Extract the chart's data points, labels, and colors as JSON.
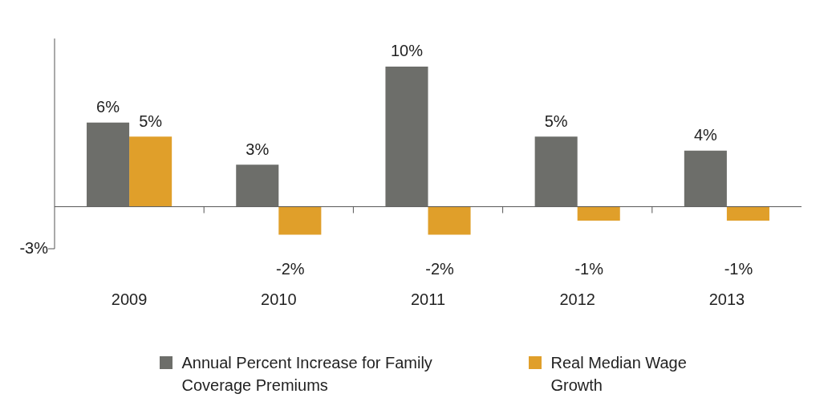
{
  "chart_data": {
    "type": "bar",
    "categories": [
      "2009",
      "2010",
      "2011",
      "2012",
      "2013"
    ],
    "series": [
      {
        "name": "Annual Percent Increase for Family Coverage Premiums",
        "color": "#6d6e6a",
        "values": [
          6,
          3,
          10,
          5,
          4
        ],
        "value_labels": [
          "6%",
          "3%",
          "10%",
          "5%",
          "4%"
        ]
      },
      {
        "name": "Real Median Wage Growth",
        "color": "#e09f2a",
        "values": [
          5,
          -2,
          -2,
          -1,
          -1
        ],
        "value_labels": [
          "5%",
          "-2%",
          "-2%",
          "-1%",
          "-1%"
        ]
      }
    ],
    "ylim": [
      -3,
      12
    ],
    "annotations": [
      "-3%"
    ],
    "grid": false,
    "legend": "bottom"
  }
}
